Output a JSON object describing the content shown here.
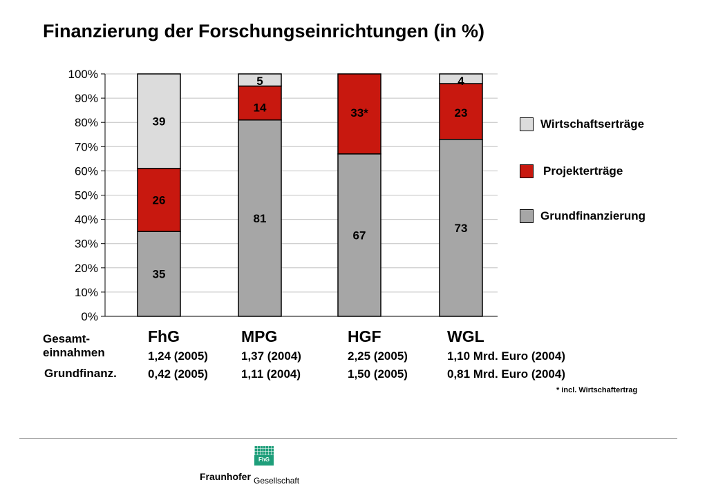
{
  "title": "Finanzierung der Forschungseinrichtungen (in %)",
  "colors": {
    "wirtschaft": "#dcdcdc",
    "projekt": "#c8180f",
    "grund": "#a6a6a6",
    "gridline": "#c0c0c0",
    "logo": "#1e9e7a"
  },
  "chart_data": {
    "type": "bar",
    "stacked": true,
    "categories": [
      "FhG",
      "MPG",
      "HGF",
      "WGL"
    ],
    "ylim": [
      0,
      100
    ],
    "yticks": [
      "0%",
      "10%",
      "20%",
      "30%",
      "40%",
      "50%",
      "60%",
      "70%",
      "80%",
      "90%",
      "100%"
    ],
    "grid": true,
    "legend_position": "right",
    "series": [
      {
        "name": "Grundfinanzierung",
        "values": [
          35,
          81,
          67,
          73
        ],
        "labels": [
          "35",
          "81",
          "67",
          "73"
        ]
      },
      {
        "name": "Projekterträge",
        "values": [
          26,
          14,
          33,
          23
        ],
        "labels": [
          "26",
          "14",
          "33*",
          "23"
        ]
      },
      {
        "name": "Wirtschaftserträge",
        "values": [
          39,
          5,
          0,
          4
        ],
        "labels": [
          "39",
          "5",
          "",
          "4"
        ]
      }
    ]
  },
  "legend": [
    "Wirtschaftserträge",
    "Projekterträge",
    "Grundfinanzierung"
  ],
  "rows": {
    "gesamt_line1": "Gesamt-",
    "gesamt_line2": "einnahmen",
    "grundfinanz": "Grundfinanz."
  },
  "orgs": [
    {
      "name": "FhG",
      "gesamt": "1,24 (2005)",
      "grund": "0,42 (2005)"
    },
    {
      "name": "MPG",
      "gesamt": "1,37 (2004)",
      "grund": "1,11 (2004)"
    },
    {
      "name": "HGF",
      "gesamt": "2,25 (2005)",
      "grund": "1,50 (2005)"
    },
    {
      "name": "WGL",
      "gesamt": "1,10 Mrd. Euro (2004)",
      "grund": "0,81 Mrd. Euro (2004)"
    }
  ],
  "footnote": "* incl. Wirtschaftertrag",
  "logo": {
    "mark": "FhG",
    "brand": "Fraunhofer",
    "sub": "Gesellschaft"
  }
}
